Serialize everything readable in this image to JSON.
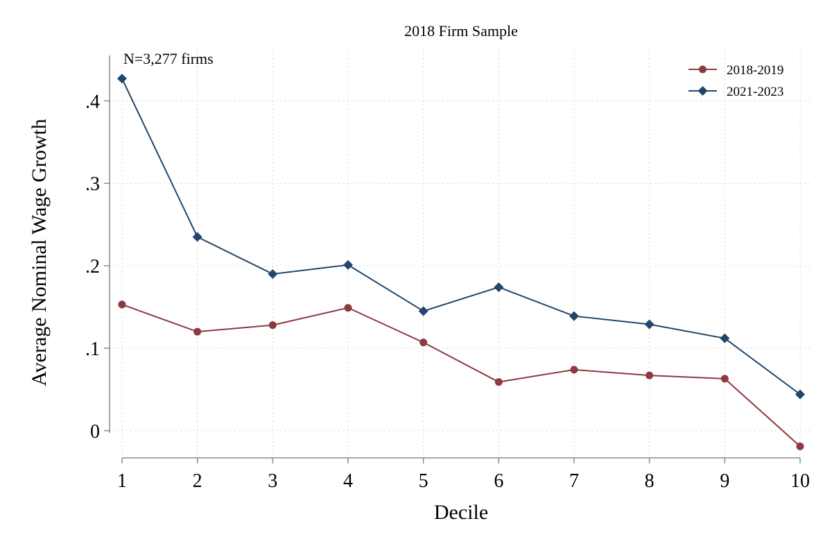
{
  "chart_data": {
    "type": "line",
    "title": "2018 Firm Sample",
    "xlabel": "Decile",
    "ylabel": "Average Nominal Wage Growth",
    "annotation": "N=3,277 firms",
    "x": [
      1,
      2,
      3,
      4,
      5,
      6,
      7,
      8,
      9,
      10
    ],
    "xticks": [
      1,
      2,
      3,
      4,
      5,
      6,
      7,
      8,
      9,
      10
    ],
    "xtick_labels": [
      "1",
      "2",
      "3",
      "4",
      "5",
      "6",
      "7",
      "8",
      "9",
      "10"
    ],
    "yticks": [
      0,
      0.1,
      0.2,
      0.3,
      0.4
    ],
    "ytick_labels": [
      "0",
      ".1",
      ".2",
      ".3",
      ".4"
    ],
    "xlim": [
      1,
      10
    ],
    "ylim": [
      -0.033,
      0.455
    ],
    "grid": true,
    "legend_position": "top-right",
    "series": [
      {
        "name": "2018-2019",
        "color": "#8b3a3f",
        "marker": "circle",
        "values": [
          0.153,
          0.12,
          0.128,
          0.149,
          0.107,
          0.059,
          0.074,
          0.067,
          0.063,
          -0.019
        ]
      },
      {
        "name": "2021-2023",
        "color": "#22466b",
        "marker": "diamond",
        "values": [
          0.427,
          0.235,
          0.19,
          0.201,
          0.145,
          0.174,
          0.139,
          0.129,
          0.112,
          0.044
        ]
      }
    ]
  }
}
